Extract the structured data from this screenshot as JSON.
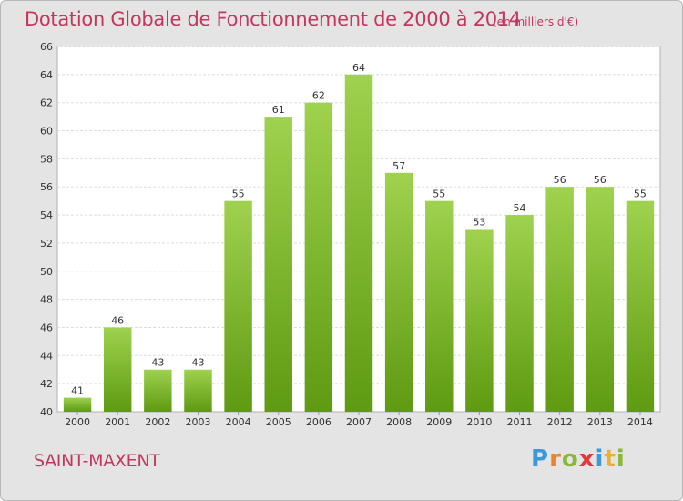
{
  "chart_data": {
    "type": "bar",
    "title": "Dotation Globale de Fonctionnement de 2000 à 2014",
    "unit": "(en milliers d'€)",
    "categories": [
      "2000",
      "2001",
      "2002",
      "2003",
      "2004",
      "2005",
      "2006",
      "2007",
      "2008",
      "2009",
      "2010",
      "2011",
      "2012",
      "2013",
      "2014"
    ],
    "values": [
      41,
      46,
      43,
      43,
      55,
      61,
      62,
      64,
      57,
      55,
      53,
      54,
      56,
      56,
      55
    ],
    "ylim": [
      40,
      66
    ],
    "yticks": [
      40,
      42,
      44,
      46,
      48,
      50,
      52,
      54,
      56,
      58,
      60,
      62,
      64,
      66
    ],
    "grid": true,
    "bar_color_top": "#9fd24e",
    "bar_color_bottom": "#5e9a12"
  },
  "footer": {
    "place": "SAINT-MAXENT",
    "logo": {
      "p": "P",
      "r": "r",
      "o": "o",
      "x": "x",
      "i": "i",
      "t": "t",
      "i2": "i"
    }
  }
}
